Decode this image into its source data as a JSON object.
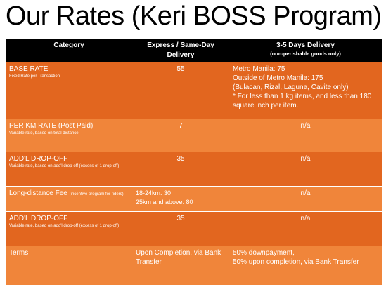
{
  "title": "Our Rates (Keri BOSS Program)",
  "table": {
    "headers": {
      "category": "Category",
      "express": "Express / Same-Day Delivery",
      "three_five": "3-5 Days Delivery",
      "three_five_note": "(non-perishable goods only)"
    },
    "rows": [
      {
        "category": "BASE RATE",
        "description": "Fixed Rate per Transaction",
        "express": "55",
        "three_five_lines": [
          "Metro Manila: 75",
          "Outside of Metro Manila: 175",
          "(Bulacan, Rizal, Laguna, Cavite only)",
          "* For less than 1 kg items, and less than 180 square inch per item."
        ]
      },
      {
        "category": "PER KM RATE (Post Paid)",
        "description": "Variable rate, based on total distance",
        "express": "7",
        "three_five": "n/a"
      },
      {
        "category": "ADD'L DROP-OFF",
        "description": "Variable rate, based on add'l drop-off (excess of 1 drop-off)",
        "express": "35",
        "three_five": "n/a"
      },
      {
        "category": "Long-distance Fee",
        "category_note": "(incentive program for riders)",
        "express_lines": [
          "18-24km: 30",
          "25km and above: 80"
        ],
        "three_five": "n/a"
      },
      {
        "category": "ADD'L DROP-OFF",
        "description": "Variable rate, based on add'l drop-off (excess of 1 drop-off)",
        "express": "35",
        "three_five": "n/a"
      },
      {
        "category": "Terms",
        "express": "Upon Completion, via Bank Transfer",
        "three_five_lines": [
          "50% downpayment,",
          "50% upon completion, via Bank Transfer"
        ]
      }
    ]
  },
  "colors": {
    "header_bg": "#000000",
    "row_dark": "#e2661f",
    "row_light": "#f0853a",
    "text": "#ffffff"
  }
}
